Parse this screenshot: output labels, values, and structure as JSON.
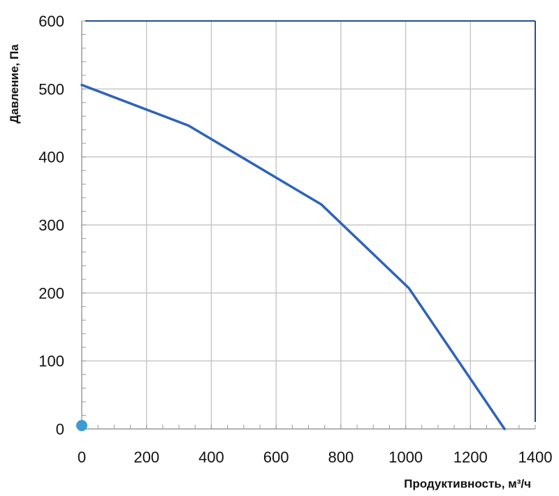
{
  "chart_data": {
    "type": "line",
    "title": "",
    "xlabel": "Продуктивность, м³/ч",
    "ylabel": "Давление, Па",
    "xlim": [
      0,
      1400
    ],
    "ylim": [
      0,
      600
    ],
    "x_ticks": [
      "0",
      "200",
      "400",
      "600",
      "800",
      "1000",
      "1200",
      "1400"
    ],
    "y_ticks": [
      "0",
      "100",
      "200",
      "300",
      "400",
      "500",
      "600"
    ],
    "grid": true,
    "legend": "none",
    "series": [
      {
        "color": "#2e63b8",
        "points": [
          {
            "x": 0,
            "y": 506
          },
          {
            "x": 330,
            "y": 446
          },
          {
            "x": 740,
            "y": 330
          },
          {
            "x": 1010,
            "y": 207
          },
          {
            "x": 1305,
            "y": 0
          }
        ]
      }
    ],
    "marker": {
      "x": 0,
      "y": 5,
      "color": "#3a9bd5"
    }
  }
}
